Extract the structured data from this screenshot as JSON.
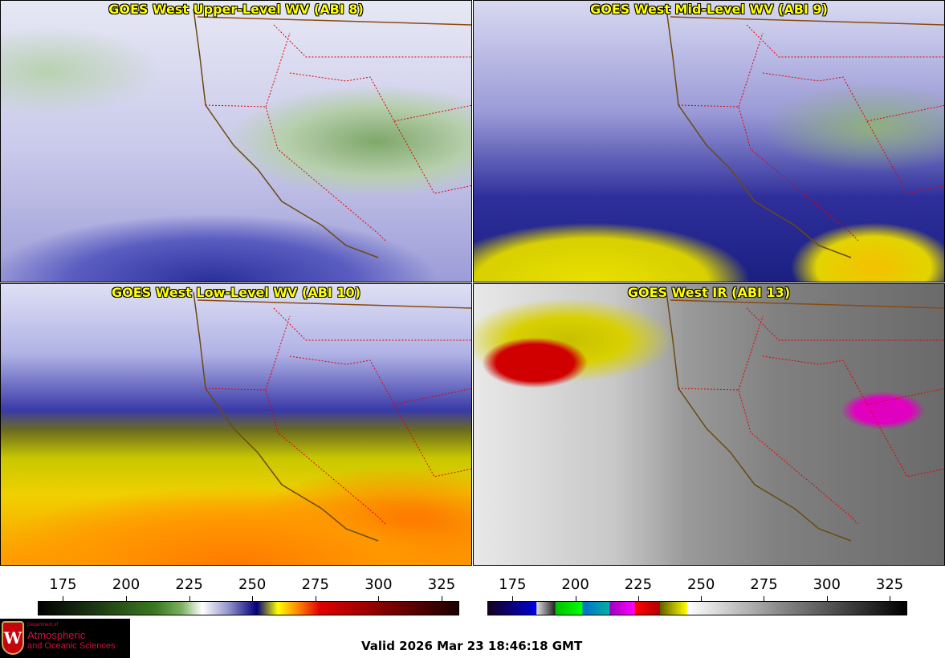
{
  "panels": [
    {
      "title": "GOES West Upper-Level WV (ABI 8)"
    },
    {
      "title": "GOES West Mid-Level WV (ABI 9)"
    },
    {
      "title": "GOES West Low-Level WV (ABI 10)"
    },
    {
      "title": "GOES West IR (ABI 13)"
    }
  ],
  "colorbars": [
    {
      "name": "water-vapor",
      "ticks": [
        "175",
        "200",
        "225",
        "250",
        "275",
        "300",
        "325"
      ],
      "range": [
        165,
        332
      ]
    },
    {
      "name": "infrared",
      "ticks": [
        "175",
        "200",
        "225",
        "250",
        "275",
        "300",
        "325"
      ],
      "range": [
        165,
        332
      ]
    }
  ],
  "logo": {
    "line1": "Department of",
    "line2": "Atmospheric",
    "line3": "and Oceanic Sciences",
    "crest_letter": "W"
  },
  "valid_time": "Valid 2026 Mar 23 18:46:18 GMT",
  "colors": {
    "title": "#ffff00",
    "state_border": "#e00000",
    "coastline": "#6b4a10"
  }
}
